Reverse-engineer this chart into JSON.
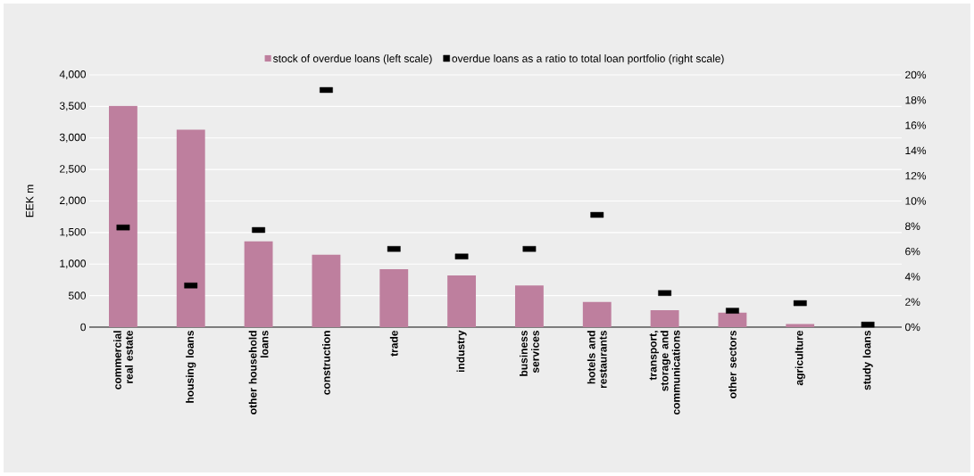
{
  "chart_data": {
    "type": "bar",
    "categories": [
      "commercial real estate",
      "housing loans",
      "other household loans",
      "construction",
      "trade",
      "industry",
      "business services",
      "hotels and restaurants",
      "transport, storage and communications",
      "other sectors",
      "agriculture",
      "study loans"
    ],
    "series": [
      {
        "name": "stock of overdue loans (left scale)",
        "color": "#be7f9e",
        "values": [
          3510,
          3130,
          1360,
          1150,
          920,
          820,
          660,
          400,
          270,
          230,
          50,
          null
        ]
      },
      {
        "name": "overdue loans as a ratio to total loan portfolio (right scale)",
        "type": "scatter",
        "axis": "y2",
        "marker": "square",
        "color": "#000000",
        "values": [
          7.9,
          3.3,
          7.7,
          18.8,
          6.2,
          5.6,
          6.2,
          8.9,
          2.7,
          1.3,
          1.9,
          0.2
        ]
      }
    ],
    "ylabel": "EEK m",
    "ylim": [
      0,
      4000
    ],
    "yticks": [
      0,
      500,
      {
        "value": 1000,
        "label": "1,000"
      },
      {
        "value": 1500,
        "label": "1,500"
      },
      {
        "value": 2000,
        "label": "2,000"
      },
      {
        "value": 2500,
        "label": "2,500"
      },
      {
        "value": 3000,
        "label": "3,000"
      },
      {
        "value": 3500,
        "label": "3,500"
      },
      {
        "value": 4000,
        "label": "4,000"
      }
    ],
    "y2lim": [
      0,
      20
    ],
    "y2ticks": [
      {
        "value": 0,
        "label": "0%"
      },
      {
        "value": 2,
        "label": "2%"
      },
      {
        "value": 4,
        "label": "4%"
      },
      {
        "value": 6,
        "label": "6%"
      },
      {
        "value": 8,
        "label": "8%"
      },
      {
        "value": 10,
        "label": "10%"
      },
      {
        "value": 12,
        "label": "12%"
      },
      {
        "value": 14,
        "label": "14%"
      },
      {
        "value": 16,
        "label": "16%"
      },
      {
        "value": 18,
        "label": "18%"
      },
      {
        "value": 20,
        "label": "20%"
      }
    ],
    "grid": "y",
    "legend": "top"
  }
}
